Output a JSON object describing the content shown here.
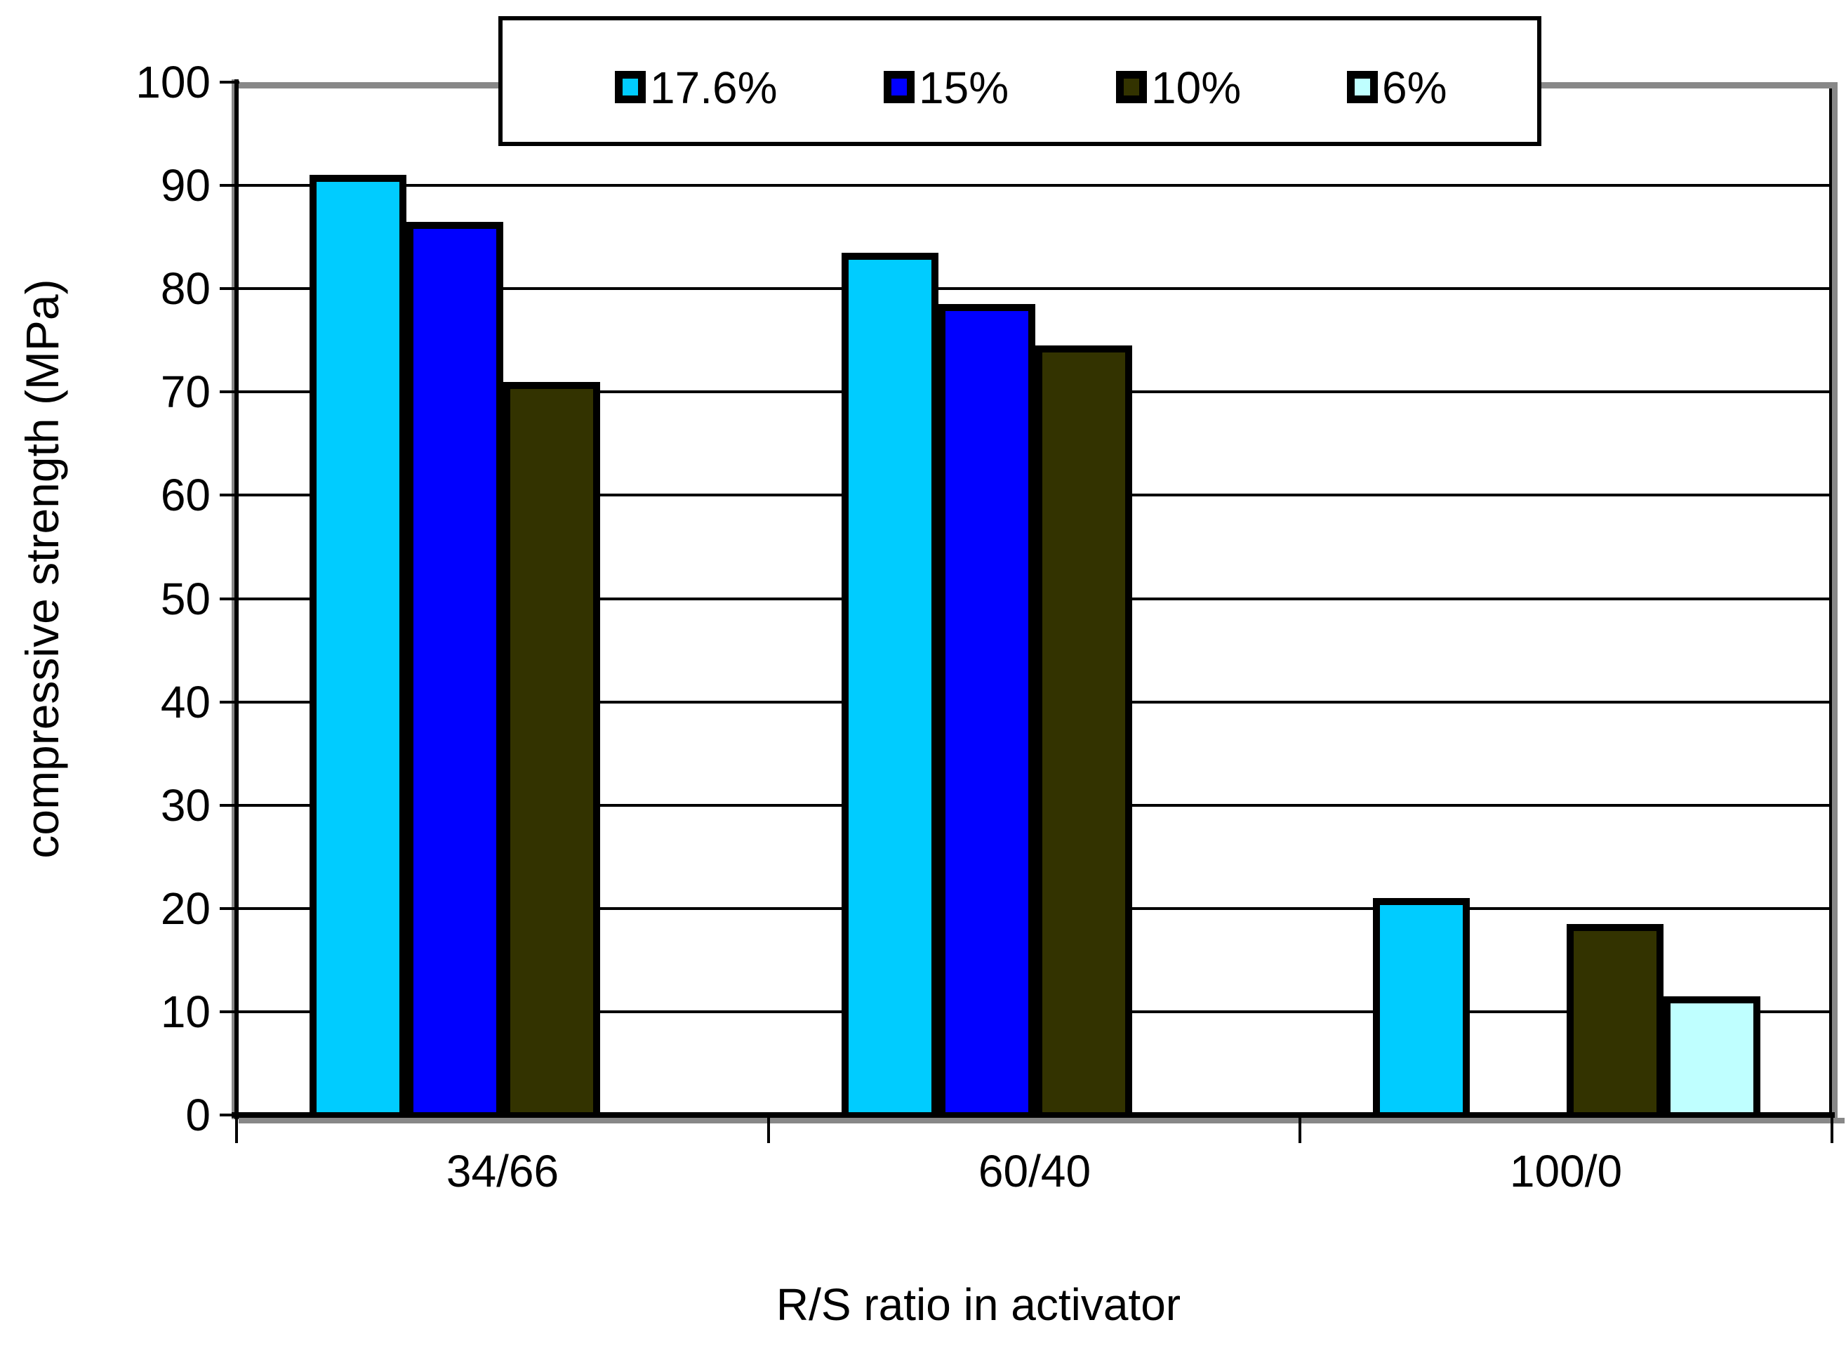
{
  "chart_data": {
    "type": "bar",
    "title": "",
    "xlabel": "R/S ratio in activator",
    "ylabel": "compressive strength (MPa)",
    "categories": [
      "34/66",
      "60/40",
      "100/0"
    ],
    "series": [
      {
        "name": "17.6%",
        "color": "#00CCFF",
        "values": [
          91,
          83.5,
          21
        ]
      },
      {
        "name": "15%",
        "color": "#0000FF",
        "values": [
          86.5,
          78.5,
          null
        ]
      },
      {
        "name": "10%",
        "color": "#333300",
        "values": [
          71,
          74.5,
          18.5
        ]
      },
      {
        "name": "6%",
        "color": "#BFFFFF",
        "values": [
          null,
          null,
          11.5
        ]
      }
    ],
    "ylim": [
      0,
      100
    ],
    "ytick_step": 10,
    "grid": true,
    "legend_position": "top-center",
    "colors": {
      "grid": "#000000",
      "axis": "#000000",
      "axis_shadow": "#888888",
      "bar_border": "#000000",
      "plot_background": "#ffffff"
    }
  }
}
